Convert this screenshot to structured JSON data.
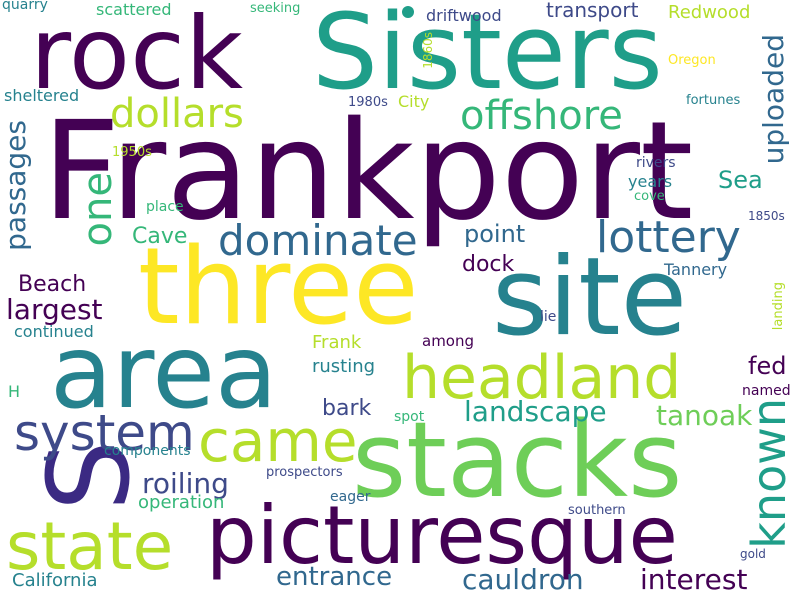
{
  "palette": {
    "dark_purple": "#440154",
    "indigo": "#3b2a83",
    "slate_blue": "#3e4a89",
    "steel_blue": "#31688e",
    "teal": "#26828e",
    "sea_green": "#1f9e89",
    "green": "#35b779",
    "light_green": "#6ece58",
    "lime": "#b5de2b",
    "yellow": "#fde725"
  },
  "words": [
    {
      "id": "frankport",
      "text": "Frankport"
    },
    {
      "id": "sisters",
      "text": "Sisters"
    },
    {
      "id": "rock",
      "text": "rock"
    },
    {
      "id": "three",
      "text": "three"
    },
    {
      "id": "site",
      "text": "site"
    },
    {
      "id": "area",
      "text": "area"
    },
    {
      "id": "stacks",
      "text": "stacks"
    },
    {
      "id": "picturesque",
      "text": "picturesque"
    },
    {
      "id": "s",
      "text": "S"
    },
    {
      "id": "headland",
      "text": "headland"
    },
    {
      "id": "state",
      "text": "state"
    },
    {
      "id": "came",
      "text": "came"
    },
    {
      "id": "system",
      "text": "system"
    },
    {
      "id": "dominate",
      "text": "dominate"
    },
    {
      "id": "lottery",
      "text": "lottery"
    },
    {
      "id": "offshore",
      "text": "offshore"
    },
    {
      "id": "dollars",
      "text": "dollars"
    },
    {
      "id": "known",
      "text": "known"
    },
    {
      "id": "one",
      "text": "one"
    },
    {
      "id": "uploaded",
      "text": "uploaded"
    },
    {
      "id": "passages",
      "text": "passages"
    },
    {
      "id": "landscape",
      "text": "landscape"
    },
    {
      "id": "tanoak",
      "text": "tanoak"
    },
    {
      "id": "roiling",
      "text": "roiling"
    },
    {
      "id": "entrance",
      "text": "entrance"
    },
    {
      "id": "cauldron",
      "text": "cauldron"
    },
    {
      "id": "interest",
      "text": "interest"
    },
    {
      "id": "largest",
      "text": "largest"
    },
    {
      "id": "beach",
      "text": "Beach"
    },
    {
      "id": "cave",
      "text": "Cave"
    },
    {
      "id": "point",
      "text": "point"
    },
    {
      "id": "dock",
      "text": "dock"
    },
    {
      "id": "sea",
      "text": "Sea"
    },
    {
      "id": "fed",
      "text": "fed"
    },
    {
      "id": "bark",
      "text": "bark"
    },
    {
      "id": "transport",
      "text": "transport"
    },
    {
      "id": "redwood",
      "text": "Redwood"
    },
    {
      "id": "driftwood",
      "text": "driftwood"
    },
    {
      "id": "scattered",
      "text": "scattered"
    },
    {
      "id": "quarry",
      "text": "quarry"
    },
    {
      "id": "seeking",
      "text": "seeking"
    },
    {
      "id": "sheltered",
      "text": "sheltered"
    },
    {
      "id": "city",
      "text": "City"
    },
    {
      "id": "1980s",
      "text": "1980s"
    },
    {
      "id": "1860s",
      "text": "1860s"
    },
    {
      "id": "oregon",
      "text": "Oregon"
    },
    {
      "id": "fortunes",
      "text": "fortunes"
    },
    {
      "id": "1950s",
      "text": "1950s"
    },
    {
      "id": "rivers",
      "text": "rivers"
    },
    {
      "id": "years",
      "text": "years"
    },
    {
      "id": "cove",
      "text": "cove"
    },
    {
      "id": "place",
      "text": "place"
    },
    {
      "id": "1850s",
      "text": "1850s"
    },
    {
      "id": "tannery",
      "text": "Tannery"
    },
    {
      "id": "landing",
      "text": "landing"
    },
    {
      "id": "lie",
      "text": "lie"
    },
    {
      "id": "continued",
      "text": "continued"
    },
    {
      "id": "frank",
      "text": "Frank"
    },
    {
      "id": "among",
      "text": "among"
    },
    {
      "id": "rusting",
      "text": "rusting"
    },
    {
      "id": "named",
      "text": "named"
    },
    {
      "id": "h",
      "text": "H"
    },
    {
      "id": "spot",
      "text": "spot"
    },
    {
      "id": "components",
      "text": "components"
    },
    {
      "id": "prospectors",
      "text": "prospectors"
    },
    {
      "id": "eager",
      "text": "eager"
    },
    {
      "id": "operation",
      "text": "operation"
    },
    {
      "id": "southern",
      "text": "southern"
    },
    {
      "id": "gold",
      "text": "gold"
    },
    {
      "id": "california",
      "text": "California"
    }
  ]
}
